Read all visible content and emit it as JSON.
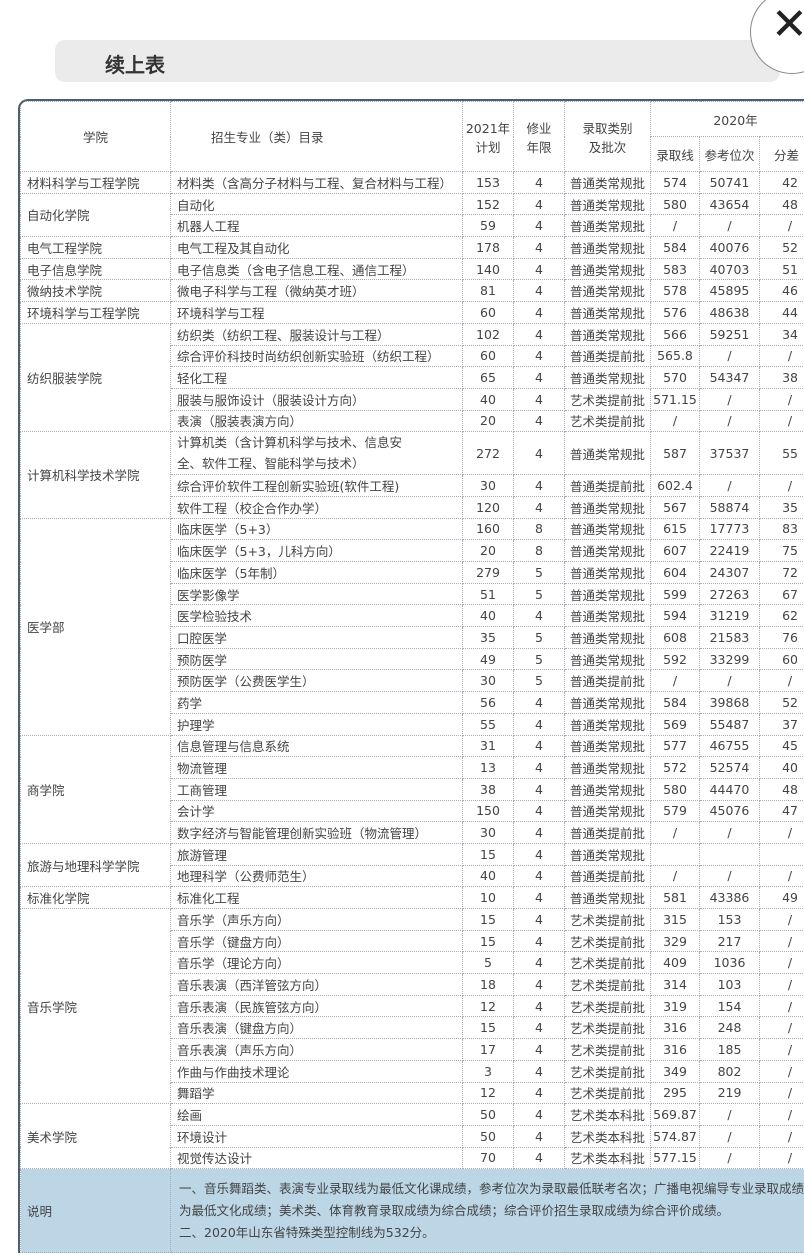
{
  "title": "续上表",
  "close_icon": "close-icon",
  "headers": {
    "college": "学院",
    "major": "招生专业（类）目录",
    "plan": "2021年计划",
    "plan_l1": "2021年",
    "plan_l2": "计划",
    "years_l1": "修业",
    "years_l2": "年限",
    "cat_l1": "录取类别",
    "cat_l2": "及批次",
    "year2020": "2020年",
    "line": "录取线",
    "rank": "参考位次",
    "diff": "分差"
  },
  "groups": [
    {
      "college": "材料科学与工程学院",
      "rows": [
        [
          "材料类（含高分子材料与工程、复合材料与工程）",
          "153",
          "4",
          "普通类常规批",
          "574",
          "50741",
          "42"
        ]
      ]
    },
    {
      "college": "自动化学院",
      "rows": [
        [
          "自动化",
          "152",
          "4",
          "普通类常规批",
          "580",
          "43654",
          "48"
        ],
        [
          "机器人工程",
          "59",
          "4",
          "普通类常规批",
          "/",
          "/",
          "/"
        ]
      ]
    },
    {
      "college": "电气工程学院",
      "rows": [
        [
          "电气工程及其自动化",
          "178",
          "4",
          "普通类常规批",
          "584",
          "40076",
          "52"
        ]
      ]
    },
    {
      "college": "电子信息学院",
      "rows": [
        [
          "电子信息类（含电子信息工程、通信工程）",
          "140",
          "4",
          "普通类常规批",
          "583",
          "40703",
          "51"
        ]
      ]
    },
    {
      "college": "微纳技术学院",
      "rows": [
        [
          "微电子科学与工程（微纳英才班）",
          "81",
          "4",
          "普通类常规批",
          "578",
          "45895",
          "46"
        ]
      ]
    },
    {
      "college": "环境科学与工程学院",
      "rows": [
        [
          "环境科学与工程",
          "60",
          "4",
          "普通类常规批",
          "576",
          "48638",
          "44"
        ]
      ]
    },
    {
      "college": "纺织服装学院",
      "rows": [
        [
          "纺织类（纺织工程、服装设计与工程）",
          "102",
          "4",
          "普通类常规批",
          "566",
          "59251",
          "34"
        ],
        [
          "综合评价科技时尚纺织创新实验班（纺织工程）",
          "60",
          "4",
          "普通类提前批",
          "565.8",
          "/",
          "/"
        ],
        [
          "轻化工程",
          "65",
          "4",
          "普通类常规批",
          "570",
          "54347",
          "38"
        ],
        [
          "服装与服饰设计（服装设计方向）",
          "40",
          "4",
          "艺术类提前批",
          "571.15",
          "/",
          "/"
        ],
        [
          "表演（服装表演方向）",
          "20",
          "4",
          "艺术类提前批",
          "/",
          "/",
          "/"
        ]
      ]
    },
    {
      "college": "计算机科学技术学院",
      "rows": [
        [
          "计算机类（含计算机科学与技术、信息安全、软件工程、智能科学与技术）",
          "272",
          "4",
          "普通类常规批",
          "587",
          "37537",
          "55"
        ],
        [
          "综合评价软件工程创新实验班(软件工程)",
          "30",
          "4",
          "普通类提前批",
          "602.4",
          "/",
          "/"
        ],
        [
          "软件工程（校企合作办学）",
          "120",
          "4",
          "普通类常规批",
          "567",
          "58874",
          "35"
        ]
      ]
    },
    {
      "college": "医学部",
      "rows": [
        [
          "临床医学（5+3）",
          "160",
          "8",
          "普通类常规批",
          "615",
          "17773",
          "83"
        ],
        [
          "临床医学（5+3，儿科方向）",
          "20",
          "8",
          "普通类常规批",
          "607",
          "22419",
          "75"
        ],
        [
          "临床医学（5年制）",
          "279",
          "5",
          "普通类常规批",
          "604",
          "24307",
          "72"
        ],
        [
          "医学影像学",
          "51",
          "5",
          "普通类常规批",
          "599",
          "27263",
          "67"
        ],
        [
          "医学检验技术",
          "40",
          "4",
          "普通类常规批",
          "594",
          "31219",
          "62"
        ],
        [
          "口腔医学",
          "35",
          "5",
          "普通类常规批",
          "608",
          "21583",
          "76"
        ],
        [
          "预防医学",
          "49",
          "5",
          "普通类常规批",
          "592",
          "33299",
          "60"
        ],
        [
          "预防医学（公费医学生）",
          "30",
          "5",
          "普通类提前批",
          "/",
          "/",
          "/"
        ],
        [
          "药学",
          "56",
          "4",
          "普通类常规批",
          "584",
          "39868",
          "52"
        ],
        [
          "护理学",
          "55",
          "4",
          "普通类常规批",
          "569",
          "55487",
          "37"
        ]
      ]
    },
    {
      "college": "商学院",
      "rows": [
        [
          "信息管理与信息系统",
          "31",
          "4",
          "普通类常规批",
          "577",
          "46755",
          "45"
        ],
        [
          "物流管理",
          "13",
          "4",
          "普通类常规批",
          "572",
          "52574",
          "40"
        ],
        [
          "工商管理",
          "38",
          "4",
          "普通类常规批",
          "580",
          "44470",
          "48"
        ],
        [
          "会计学",
          "150",
          "4",
          "普通类常规批",
          "579",
          "45076",
          "47"
        ],
        [
          "数字经济与智能管理创新实验班（物流管理）",
          "30",
          "4",
          "普通类提前批",
          "/",
          "/",
          "/"
        ]
      ]
    },
    {
      "college": "旅游与地理科学学院",
      "rows": [
        [
          "旅游管理",
          "15",
          "4",
          "普通类常规批",
          "",
          "",
          ""
        ],
        [
          "地理科学（公费师范生）",
          "40",
          "4",
          "普通类提前批",
          "/",
          "/",
          "/"
        ]
      ]
    },
    {
      "college": "标准化学院",
      "rows": [
        [
          "标准化工程",
          "10",
          "4",
          "普通类常规批",
          "581",
          "43386",
          "49"
        ]
      ]
    },
    {
      "college": "音乐学院",
      "rows": [
        [
          "音乐学（声乐方向）",
          "15",
          "4",
          "艺术类提前批",
          "315",
          "153",
          "/"
        ],
        [
          "音乐学（键盘方向）",
          "15",
          "4",
          "艺术类提前批",
          "329",
          "217",
          "/"
        ],
        [
          "音乐学（理论方向）",
          "5",
          "4",
          "艺术类提前批",
          "409",
          "1036",
          "/"
        ],
        [
          "音乐表演（西洋管弦方向）",
          "18",
          "4",
          "艺术类提前批",
          "314",
          "103",
          "/"
        ],
        [
          "音乐表演（民族管弦方向）",
          "12",
          "4",
          "艺术类提前批",
          "319",
          "154",
          "/"
        ],
        [
          "音乐表演（键盘方向）",
          "15",
          "4",
          "艺术类提前批",
          "316",
          "248",
          "/"
        ],
        [
          "音乐表演（声乐方向）",
          "17",
          "4",
          "艺术类提前批",
          "316",
          "185",
          "/"
        ],
        [
          "作曲与作曲技术理论",
          "3",
          "4",
          "艺术类提前批",
          "349",
          "802",
          "/"
        ],
        [
          "舞蹈学",
          "12",
          "4",
          "艺术类提前批",
          "295",
          "219",
          "/"
        ]
      ]
    },
    {
      "college": "美术学院",
      "rows": [
        [
          "绘画",
          "50",
          "4",
          "艺术类本科批",
          "569.87",
          "/",
          "/"
        ],
        [
          "环境设计",
          "50",
          "4",
          "艺术类本科批",
          "574.87",
          "/",
          "/"
        ],
        [
          "视觉传达设计",
          "70",
          "4",
          "艺术类本科批",
          "577.15",
          "/",
          "/"
        ]
      ]
    }
  ],
  "notes": {
    "label": "说明",
    "line1": "一、音乐舞蹈类、表演专业录取线为最低文化课成绩，参考位次为录取最低联考名次；广播电视编导专业录取成绩为最低文化成绩；美术类、体育教育录取成绩为综合成绩；综合评价招生录取成绩为综合评价成绩。",
    "line2": "二、2020年山东省特殊类型控制线为532分。"
  },
  "colors": {
    "border": "#4a6070",
    "note_bg": "#bcd6e6",
    "title_bg": "#ebebeb"
  }
}
